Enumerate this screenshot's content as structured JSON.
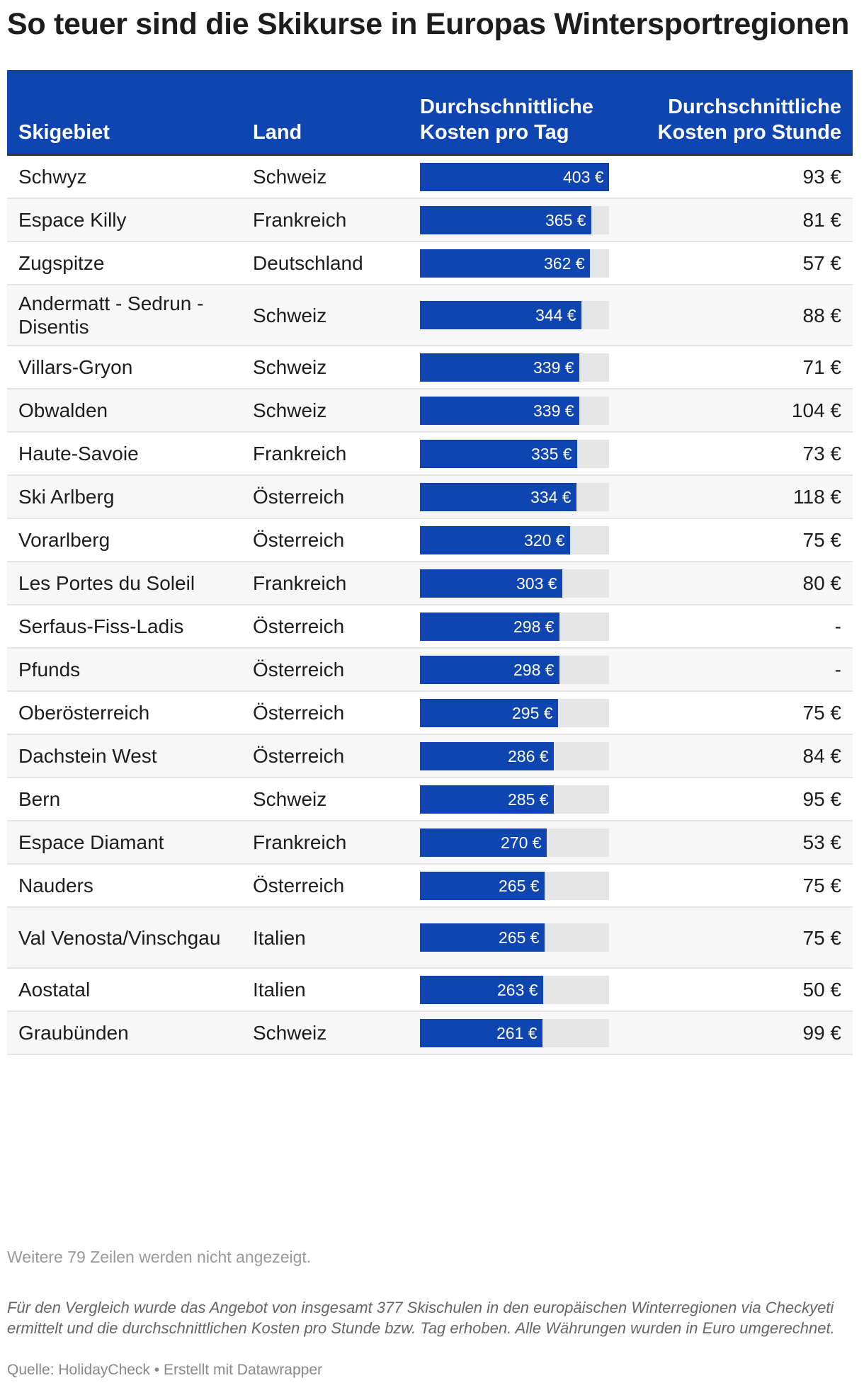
{
  "title": "So teuer sind die Skikurse in Europas Wintersportregionen",
  "accent_color": "#0f45b1",
  "track_color": "#e6e6e6",
  "table": {
    "headers": {
      "region": "Skigebiet",
      "country": "Land",
      "cost_day": "Durchschnittliche Kosten pro Tag",
      "cost_hour": "Durchschnittliche Kosten pro Stunde"
    }
  },
  "chart_data": {
    "type": "table",
    "columns": [
      "Skigebiet",
      "Land",
      "Durchschnittliche Kosten pro Tag",
      "Durchschnittliche Kosten pro Stunde"
    ],
    "bar_column_max": 403,
    "rows": [
      {
        "region": "Schwyz",
        "country": "Schweiz",
        "day": 403,
        "day_label": "403 €",
        "hour_label": "93 €"
      },
      {
        "region": "Espace Killy",
        "country": "Frankreich",
        "day": 365,
        "day_label": "365 €",
        "hour_label": "81 €"
      },
      {
        "region": "Zugspitze",
        "country": "Deutschland",
        "day": 362,
        "day_label": "362 €",
        "hour_label": "57 €"
      },
      {
        "region": "Andermatt - Sedrun - Disentis",
        "country": "Schweiz",
        "day": 344,
        "day_label": "344 €",
        "hour_label": "88 €"
      },
      {
        "region": "Villars-Gryon",
        "country": "Schweiz",
        "day": 339,
        "day_label": "339 €",
        "hour_label": "71 €"
      },
      {
        "region": "Obwalden",
        "country": "Schweiz",
        "day": 339,
        "day_label": "339 €",
        "hour_label": "104 €"
      },
      {
        "region": "Haute-Savoie",
        "country": "Frankreich",
        "day": 335,
        "day_label": "335 €",
        "hour_label": "73 €"
      },
      {
        "region": "Ski Arlberg",
        "country": "Österreich",
        "day": 334,
        "day_label": "334 €",
        "hour_label": "118 €"
      },
      {
        "region": "Vorarlberg",
        "country": "Österreich",
        "day": 320,
        "day_label": "320 €",
        "hour_label": "75 €"
      },
      {
        "region": "Les Portes du Soleil",
        "country": "Frankreich",
        "day": 303,
        "day_label": "303 €",
        "hour_label": "80 €"
      },
      {
        "region": "Serfaus-Fiss-Ladis",
        "country": "Österreich",
        "day": 298,
        "day_label": "298 €",
        "hour_label": "-"
      },
      {
        "region": "Pfunds",
        "country": "Österreich",
        "day": 298,
        "day_label": "298 €",
        "hour_label": "-"
      },
      {
        "region": "Oberösterreich",
        "country": "Österreich",
        "day": 295,
        "day_label": "295 €",
        "hour_label": "75 €"
      },
      {
        "region": "Dachstein West",
        "country": "Österreich",
        "day": 286,
        "day_label": "286 €",
        "hour_label": "84 €"
      },
      {
        "region": "Bern",
        "country": "Schweiz",
        "day": 285,
        "day_label": "285 €",
        "hour_label": "95 €"
      },
      {
        "region": "Espace Diamant",
        "country": "Frankreich",
        "day": 270,
        "day_label": "270 €",
        "hour_label": "53 €"
      },
      {
        "region": "Nauders",
        "country": "Österreich",
        "day": 265,
        "day_label": "265 €",
        "hour_label": "75 €"
      },
      {
        "region": "Val Venosta/Vinschgau",
        "country": "Italien",
        "day": 265,
        "day_label": "265 €",
        "hour_label": "75 €"
      },
      {
        "region": "Aostatal",
        "country": "Italien",
        "day": 263,
        "day_label": "263 €",
        "hour_label": "50 €"
      },
      {
        "region": "Graubünden",
        "country": "Schweiz",
        "day": 261,
        "day_label": "261 €",
        "hour_label": "99 €"
      }
    ]
  },
  "footer": {
    "more_rows": "Weitere 79 Zeilen werden nicht angezeigt.",
    "note": "Für den Vergleich wurde das Angebot von insgesamt 377 Skischulen in den europäischen Winterregionen via Checkyeti ermittelt und die durchschnittlichen Kosten pro Stunde bzw. Tag erhoben. Alle Währungen wurden in Euro umgerechnet.",
    "source": "Quelle: HolidayCheck • Erstellt mit Datawrapper"
  }
}
